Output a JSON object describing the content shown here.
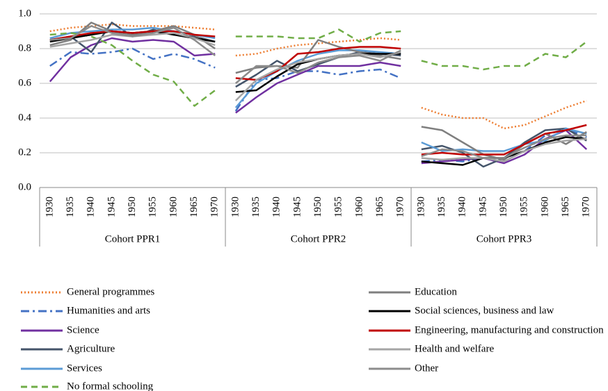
{
  "chart_data": {
    "type": "line",
    "groups": [
      {
        "name": "Cohort PPR1",
        "categories": [
          "1930",
          "1935",
          "1940",
          "1945",
          "1950",
          "1955",
          "1960",
          "1965",
          "1970"
        ]
      },
      {
        "name": "Cohort PPR2",
        "categories": [
          "1930",
          "1935",
          "1940",
          "1945",
          "1950",
          "1955",
          "1960",
          "1965",
          "1970"
        ]
      },
      {
        "name": "Cohort PPR3",
        "categories": [
          "1930",
          "1935",
          "1940",
          "1945",
          "1950",
          "1955",
          "1960",
          "1965",
          "1970"
        ]
      }
    ],
    "ylim": [
      0,
      1
    ],
    "yticks": [
      {
        "value": 0,
        "label": "0.0"
      },
      0.2,
      0.4,
      0.6,
      0.8,
      {
        "value": 1,
        "label": "1.0"
      }
    ],
    "grid": true,
    "series": [
      {
        "name": "General programmes",
        "color": "#ED7D31",
        "dash": "dotted",
        "values": [
          [
            0.9,
            0.92,
            0.93,
            0.94,
            0.93,
            0.93,
            0.93,
            0.92,
            0.91
          ],
          [
            0.76,
            0.77,
            0.8,
            0.82,
            0.83,
            0.84,
            0.85,
            0.86,
            0.85
          ],
          [
            0.46,
            0.42,
            0.4,
            0.4,
            0.34,
            0.36,
            0.41,
            0.46,
            0.5
          ]
        ]
      },
      {
        "name": "Humanities and arts",
        "color": "#4472C4",
        "dash": "dash-dot",
        "values": [
          [
            0.7,
            0.78,
            0.77,
            0.78,
            0.8,
            0.74,
            0.77,
            0.74,
            0.69
          ],
          [
            0.44,
            0.62,
            0.63,
            0.67,
            0.67,
            0.65,
            0.67,
            0.68,
            0.63
          ],
          [
            0.15,
            0.16,
            0.15,
            0.17,
            0.17,
            0.21,
            0.3,
            0.34,
            0.29
          ]
        ]
      },
      {
        "name": "Science",
        "color": "#7030A0",
        "dash": "solid",
        "values": [
          [
            0.61,
            0.75,
            0.82,
            0.86,
            0.84,
            0.85,
            0.84,
            0.76,
            0.77
          ],
          [
            0.43,
            0.52,
            0.6,
            0.65,
            0.7,
            0.7,
            0.7,
            0.72,
            0.7
          ],
          [
            0.14,
            0.15,
            0.16,
            0.17,
            0.14,
            0.19,
            0.28,
            0.33,
            0.22
          ]
        ]
      },
      {
        "name": "Agriculture",
        "color": "#44546A",
        "dash": "solid",
        "values": [
          [
            0.85,
            0.87,
            0.78,
            0.95,
            0.87,
            0.91,
            0.88,
            0.87,
            0.84
          ],
          [
            0.58,
            0.65,
            0.73,
            0.67,
            0.71,
            0.75,
            0.78,
            0.77,
            0.76
          ],
          [
            0.22,
            0.24,
            0.2,
            0.12,
            0.17,
            0.26,
            0.33,
            0.34,
            0.27
          ]
        ]
      },
      {
        "name": "Services",
        "color": "#5B9BD5",
        "dash": "solid",
        "values": [
          [
            0.86,
            0.89,
            0.9,
            0.91,
            0.91,
            0.92,
            0.9,
            0.88,
            0.86
          ],
          [
            0.46,
            0.6,
            0.67,
            0.73,
            0.77,
            0.79,
            0.79,
            0.78,
            0.77
          ],
          [
            0.26,
            0.21,
            0.22,
            0.21,
            0.21,
            0.25,
            0.27,
            0.34,
            0.31
          ]
        ]
      },
      {
        "name": "No formal schooling",
        "color": "#70AD47",
        "dash": "dashed",
        "values": [
          [
            0.88,
            0.89,
            0.87,
            0.82,
            0.73,
            0.65,
            0.61,
            0.47,
            0.56
          ],
          [
            0.87,
            0.87,
            0.87,
            0.86,
            0.86,
            0.91,
            0.84,
            0.89,
            0.9
          ],
          [
            0.73,
            0.7,
            0.7,
            0.68,
            0.7,
            0.7,
            0.77,
            0.75,
            0.84
          ]
        ]
      },
      {
        "name": "Education",
        "color": "#7F7F7F",
        "dash": "solid",
        "values": [
          [
            0.82,
            0.85,
            0.95,
            0.9,
            0.88,
            0.9,
            0.93,
            0.88,
            0.8
          ],
          [
            0.66,
            0.69,
            0.7,
            0.69,
            0.85,
            0.81,
            0.78,
            0.76,
            0.74
          ],
          [
            0.35,
            0.33,
            0.26,
            0.19,
            0.16,
            0.25,
            0.31,
            0.25,
            0.32
          ]
        ]
      },
      {
        "name": "Social sciences, business and law",
        "color": "#000000",
        "dash": "solid",
        "values": [
          [
            0.84,
            0.86,
            0.88,
            0.9,
            0.89,
            0.9,
            0.88,
            0.86,
            0.84
          ],
          [
            0.55,
            0.56,
            0.64,
            0.71,
            0.74,
            0.76,
            0.77,
            0.77,
            0.77
          ],
          [
            0.15,
            0.14,
            0.13,
            0.17,
            0.17,
            0.21,
            0.26,
            0.29,
            0.28
          ]
        ]
      },
      {
        "name": "Engineering, manufacturing and construction",
        "color": "#C00000",
        "dash": "solid",
        "values": [
          [
            0.85,
            0.87,
            0.89,
            0.9,
            0.89,
            0.9,
            0.9,
            0.88,
            0.87
          ],
          [
            0.63,
            0.62,
            0.67,
            0.77,
            0.78,
            0.8,
            0.81,
            0.81,
            0.8
          ],
          [
            0.19,
            0.2,
            0.19,
            0.19,
            0.19,
            0.25,
            0.31,
            0.33,
            0.36
          ]
        ]
      },
      {
        "name": "Health and welfare",
        "color": "#A5A5A5",
        "dash": "solid",
        "values": [
          [
            0.81,
            0.83,
            0.85,
            0.88,
            0.87,
            0.88,
            0.89,
            0.86,
            0.82
          ],
          [
            0.5,
            0.62,
            0.68,
            0.72,
            0.74,
            0.76,
            0.77,
            0.75,
            0.78
          ],
          [
            0.17,
            0.16,
            0.17,
            0.17,
            0.15,
            0.21,
            0.25,
            0.27,
            0.28
          ]
        ]
      },
      {
        "name": "Other",
        "color": "#8C8C8C",
        "dash": "solid",
        "values": [
          [
            0.85,
            0.86,
            0.93,
            0.89,
            0.87,
            0.89,
            0.92,
            0.85,
            0.76
          ],
          [
            0.6,
            0.7,
            0.7,
            0.66,
            0.72,
            0.75,
            0.76,
            0.73,
            0.79
          ],
          [
            0.18,
            0.22,
            0.21,
            0.17,
            0.17,
            0.23,
            0.28,
            0.3,
            0.3
          ]
        ]
      }
    ]
  }
}
